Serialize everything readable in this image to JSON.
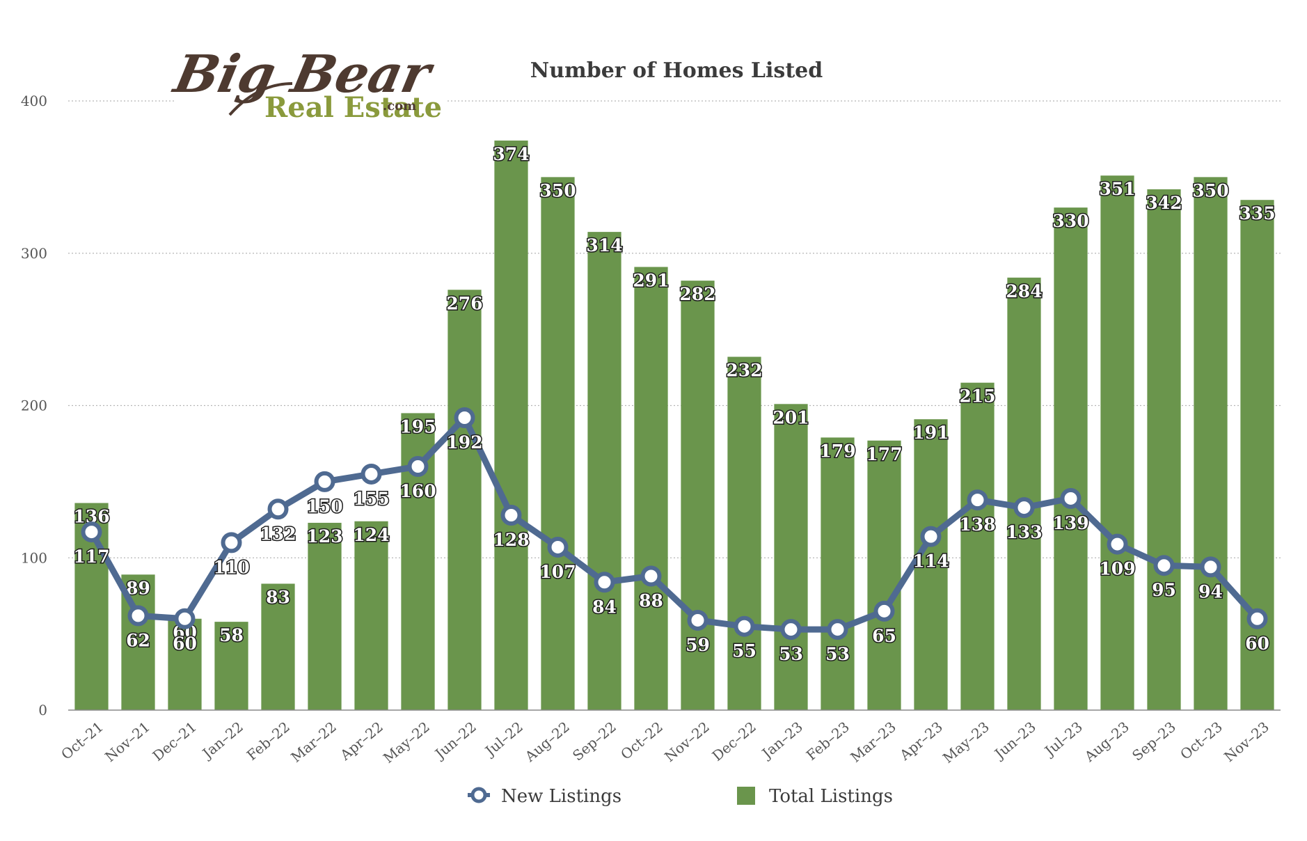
{
  "logo": {
    "line1": "Big Bear",
    "line2": "Real Estate",
    "suffix": ".com",
    "colors": {
      "brown": "#4e3a30",
      "green": "#8a9a3c"
    }
  },
  "chart_data": {
    "type": "bar",
    "title": "Number of Homes Listed",
    "xlabel": "",
    "ylabel": "",
    "ylim": [
      0,
      400
    ],
    "yticks": [
      0,
      100,
      200,
      300,
      400
    ],
    "grid": true,
    "legend_position": "bottom",
    "categories": [
      "Oct–21",
      "Nov–21",
      "Dec–21",
      "Jan–22",
      "Feb–22",
      "Mar–22",
      "Apr–22",
      "May–22",
      "Jun–22",
      "Jul–22",
      "Aug–22",
      "Sep–22",
      "Oct–22",
      "Nov–22",
      "Dec–22",
      "Jan–23",
      "Feb–23",
      "Mar–23",
      "Apr–23",
      "May–23",
      "Jun–23",
      "Jul–23",
      "Aug–23",
      "Sep–23",
      "Oct–23",
      "Nov–23"
    ],
    "series": [
      {
        "name": "Total Listings",
        "type": "bar",
        "color": "#6a954c",
        "values": [
          136,
          89,
          60,
          58,
          83,
          123,
          124,
          195,
          276,
          374,
          350,
          314,
          291,
          282,
          232,
          201,
          179,
          177,
          191,
          215,
          284,
          330,
          351,
          342,
          350,
          335
        ]
      },
      {
        "name": "New Listings",
        "type": "line",
        "color": "#4f6a91",
        "values": [
          117,
          62,
          60,
          110,
          132,
          150,
          155,
          160,
          192,
          128,
          107,
          84,
          88,
          59,
          55,
          53,
          53,
          65,
          114,
          138,
          133,
          139,
          109,
          95,
          94,
          60
        ]
      }
    ]
  }
}
